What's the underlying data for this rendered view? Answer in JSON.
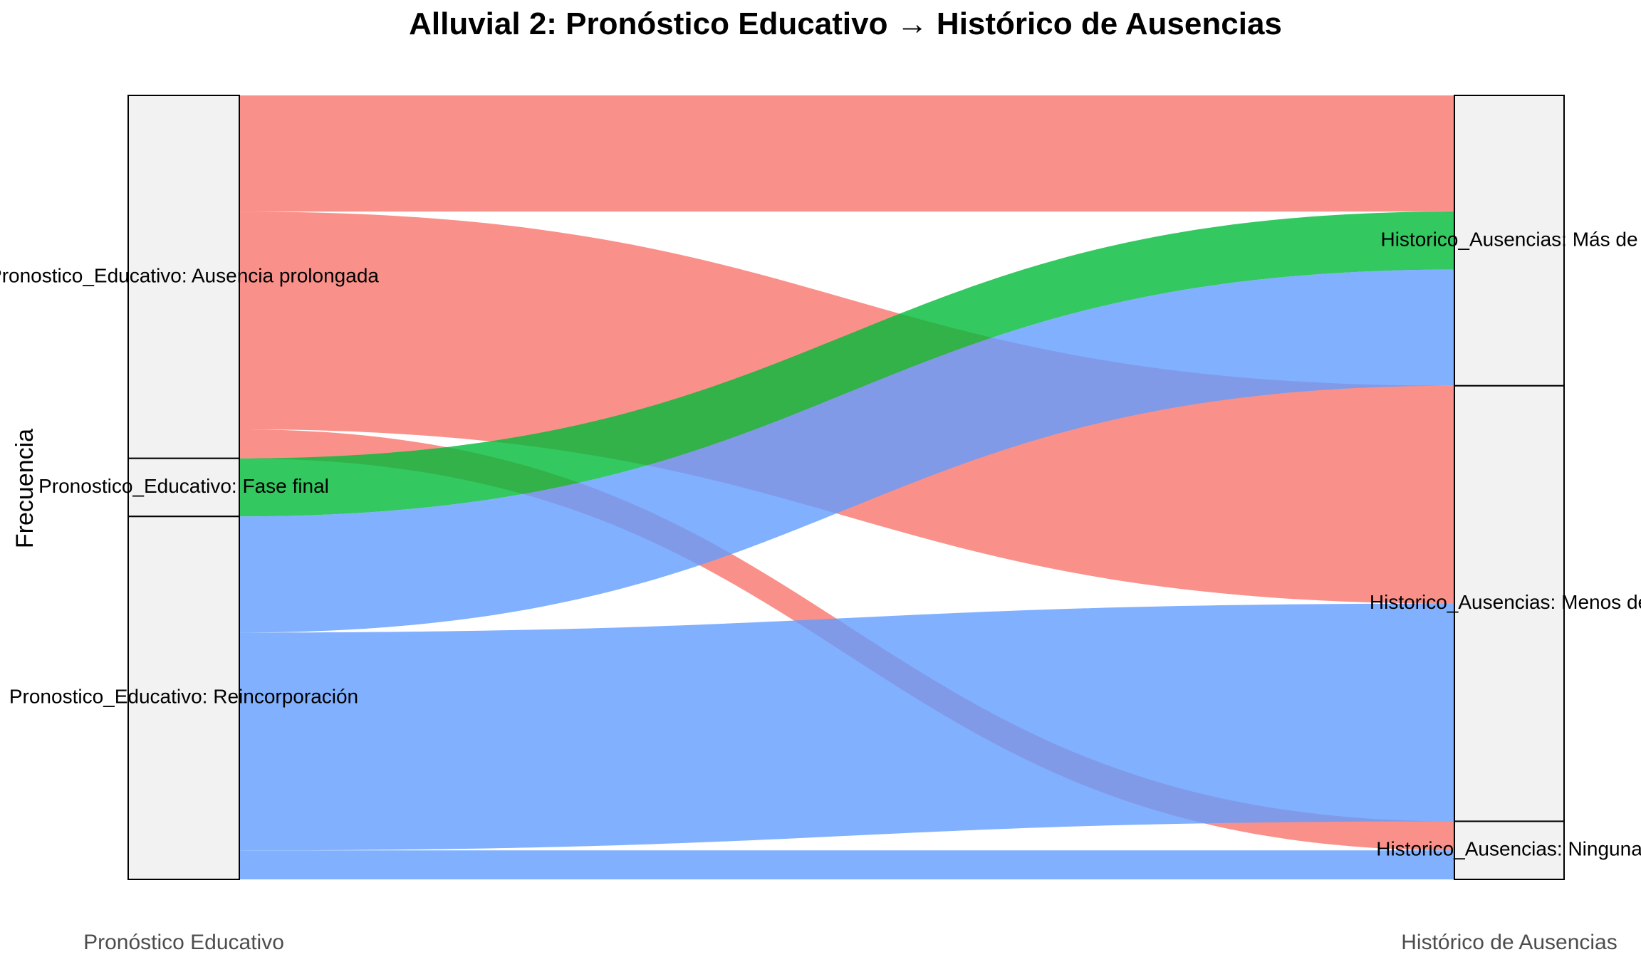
{
  "chart_data": {
    "type": "alluvial",
    "title": "Alluvial 2: Pronóstico Educativo → Histórico de Ausencias",
    "ylabel": "Frecuencia",
    "axes": [
      {
        "key": "pronostico",
        "label": "Pronóstico Educativo"
      },
      {
        "key": "historico",
        "label": "Histórico de Ausencias"
      }
    ],
    "strata": {
      "pronostico": [
        {
          "key": "ausencia",
          "label": "Pronostico_Educativo: Ausencia prolongada"
        },
        {
          "key": "fase_final",
          "label": "Pronostico_Educativo: Fase final"
        },
        {
          "key": "reincorporacion",
          "label": "Pronostico_Educativo: Reincorporación"
        }
      ],
      "historico": [
        {
          "key": "mas",
          "label": "Historico_Ausencias: Más de"
        },
        {
          "key": "menos",
          "label": "Historico_Ausencias: Menos de"
        },
        {
          "key": "ninguna",
          "label": "Historico_Ausencias: Ninguna"
        }
      ]
    },
    "fill_colors": {
      "ausencia": "#F8766D",
      "fase_final": "#00BA38",
      "reincorporacion": "#619CFF"
    },
    "flows": [
      {
        "from": "ausencia",
        "to": "mas",
        "value": 8
      },
      {
        "from": "ausencia",
        "to": "menos",
        "value": 15
      },
      {
        "from": "ausencia",
        "to": "ninguna",
        "value": 2
      },
      {
        "from": "fase_final",
        "to": "mas",
        "value": 4
      },
      {
        "from": "reincorporacion",
        "to": "mas",
        "value": 8
      },
      {
        "from": "reincorporacion",
        "to": "menos",
        "value": 15
      },
      {
        "from": "reincorporacion",
        "to": "ninguna",
        "value": 2
      }
    ]
  }
}
